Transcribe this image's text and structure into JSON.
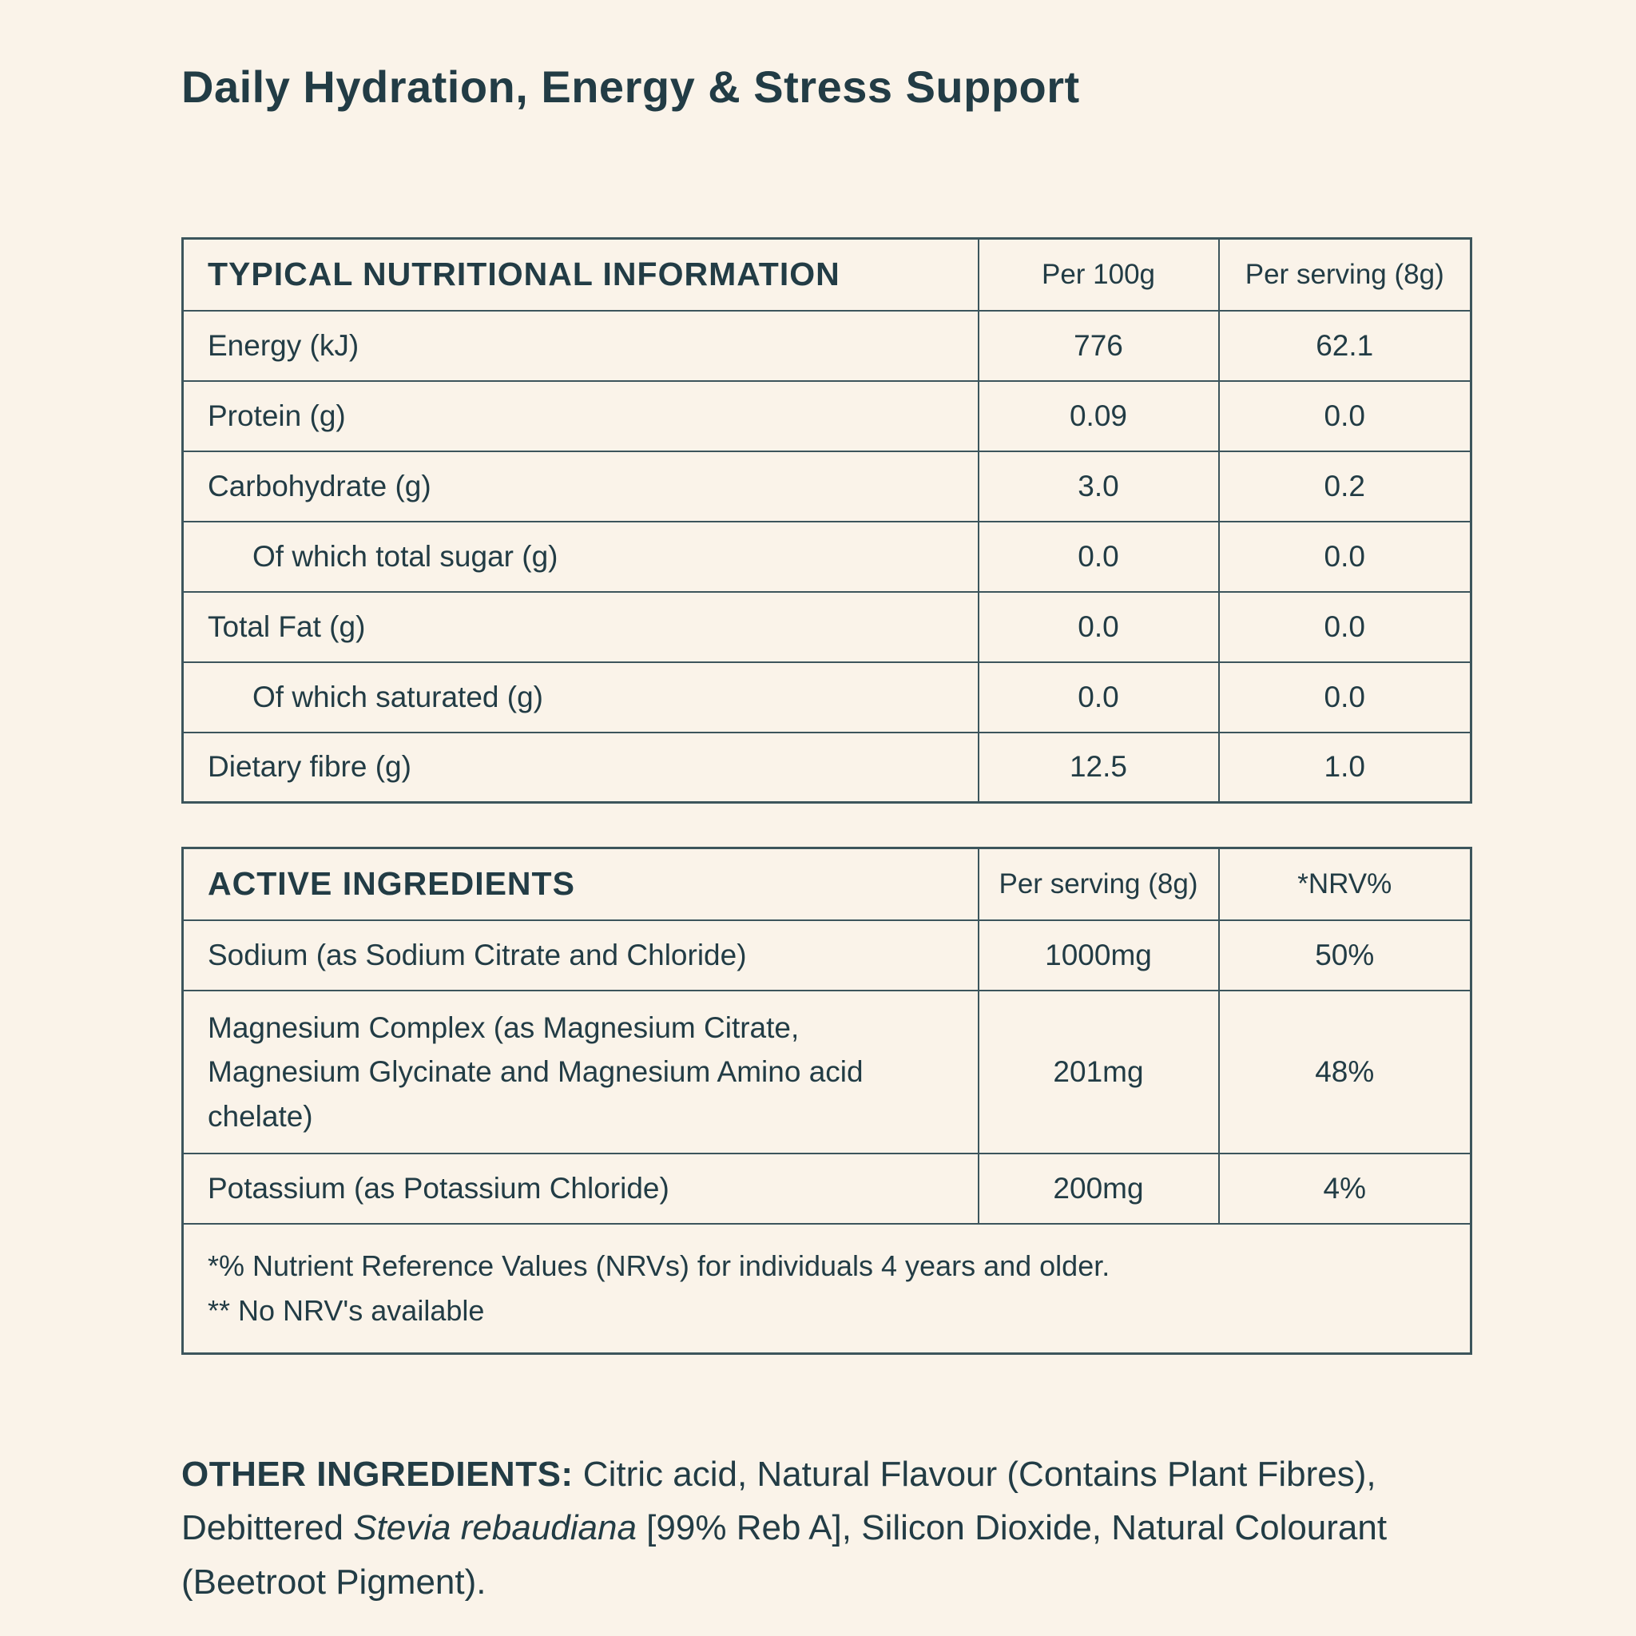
{
  "page": {
    "title": "Daily Hydration, Energy & Stress Support",
    "background_color": "#FAF3E9",
    "text_color": "#223C45",
    "border_color": "#3C555C"
  },
  "nutrition_table": {
    "header": {
      "title": "TYPICAL NUTRITIONAL INFORMATION",
      "col2": "Per 100g",
      "col3": "Per serving (8g)"
    },
    "rows": [
      {
        "label": "Energy (kJ)",
        "per_100g": "776",
        "per_serving": "62.1"
      },
      {
        "label": "Protein (g)",
        "per_100g": "0.09",
        "per_serving": "0.0"
      },
      {
        "label": "Carbohydrate (g)",
        "per_100g": "3.0",
        "per_serving": "0.2"
      },
      {
        "label": "Of which total sugar (g)",
        "per_100g": "0.0",
        "per_serving": "0.0"
      },
      {
        "label": "Total Fat (g)",
        "per_100g": "0.0",
        "per_serving": "0.0"
      },
      {
        "label": "Of which saturated (g)",
        "per_100g": "0.0",
        "per_serving": "0.0"
      },
      {
        "label": "Dietary fibre (g)",
        "per_100g": "12.5",
        "per_serving": "1.0"
      }
    ]
  },
  "active_table": {
    "header": {
      "title": "ACTIVE INGREDIENTS",
      "col2": "Per serving (8g)",
      "col3": "*NRV%"
    },
    "rows": [
      {
        "label": "Sodium (as Sodium Citrate and Chloride)",
        "per_serving": "1000mg",
        "nrv": "50%"
      },
      {
        "label": "Magnesium Complex (as Magnesium Citrate, Magnesium Glycinate and Magnesium Amino acid chelate)",
        "per_serving": "201mg",
        "nrv": "48%"
      },
      {
        "label": "Potassium (as Potassium Chloride)",
        "per_serving": "200mg",
        "nrv": "4%"
      }
    ],
    "footnotes": [
      "*% Nutrient Reference Values (NRVs) for individuals 4 years and older.",
      "** No NRV's available"
    ]
  },
  "other_ingredients": {
    "label": "OTHER INGREDIENTS:",
    "before_italic": " Citric acid, Natural Flavour (Contains Plant Fibres), Debittered ",
    "italic": "Stevia rebaudiana",
    "after_italic": " [99% Reb A], Silicon Dioxide, Natural Colourant (Beetroot Pigment)."
  }
}
